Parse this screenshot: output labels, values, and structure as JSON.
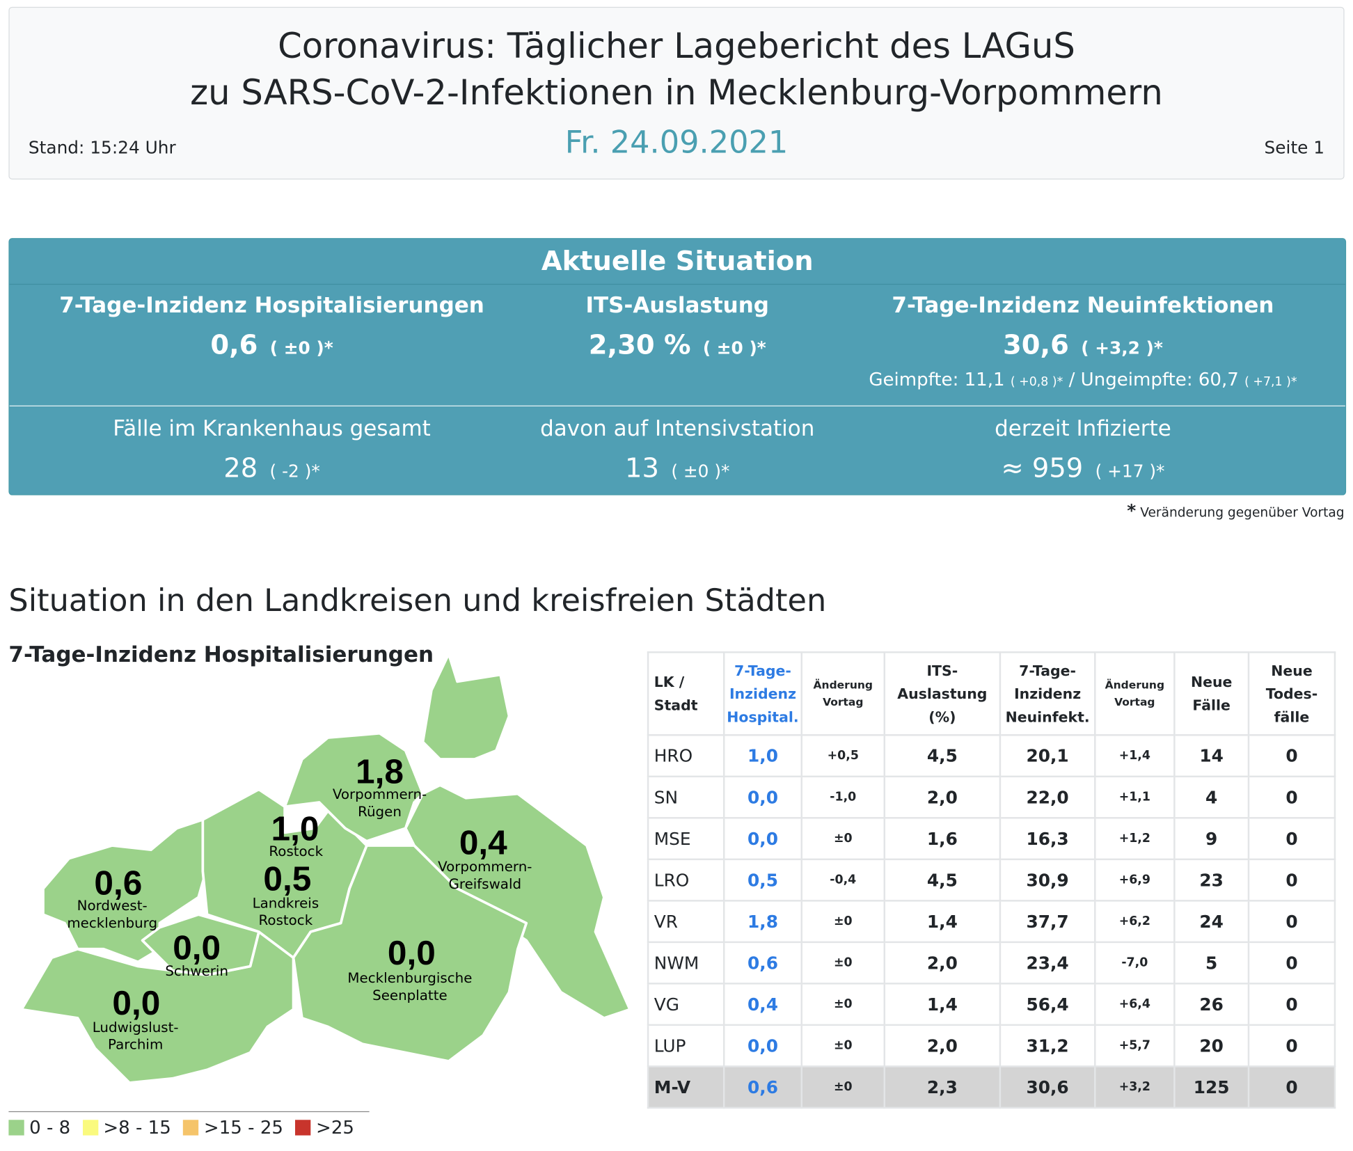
{
  "header": {
    "title_line1": "Coronavirus: Täglicher Lagebericht des LAGuS",
    "title_line2": "zu SARS-CoV-2-Infektionen in Mecklenburg-Vorpommern",
    "date": "Fr. 24.09.2021",
    "stand": "Stand: 15:24 Uhr",
    "page": "Seite 1"
  },
  "situation": {
    "title": "Aktuelle Situation",
    "hosp": {
      "label": "7-Tage-Inzidenz Hospitalisierungen",
      "value": "0,6",
      "change": "( ±0 )*"
    },
    "its": {
      "label": "ITS-Auslastung",
      "value": "2,30 %",
      "change": "( ±0 )*"
    },
    "neu": {
      "label": "7-Tage-Inzidenz Neuinfektionen",
      "value": "30,6",
      "change": "( +3,2 )*",
      "geimpfte": "Geimpfte: 11,1",
      "geimpfte_change": "( +0,8 )*",
      "sep": "/",
      "ungeimpfte": "Ungeimpfte: 60,7",
      "ungeimpfte_change": "( +7,1 )*"
    },
    "kh": {
      "label": "Fälle im Krankenhaus gesamt",
      "value": "28",
      "change": "( -2 )*"
    },
    "intensiv": {
      "label": "davon auf Intensivstation",
      "value": "13",
      "change": "( ±0 )*"
    },
    "infiziert": {
      "label": "derzeit Infizierte",
      "value": "≈ 959",
      "change": "( +17 )*"
    },
    "footnote_star": "*",
    "footnote": "Veränderung gegenüber Vortag"
  },
  "section_title": "Situation in den Landkreisen und kreisfreien Städten",
  "map": {
    "title": "7-Tage-Inzidenz Hospitalisierungen",
    "fill_color": "#9bd28a",
    "regions": [
      {
        "name1": "Vorpommern-",
        "name2": "Rügen",
        "value": "1,8"
      },
      {
        "name1": "Rostock",
        "name2": "",
        "value": "1,0"
      },
      {
        "name1": "Vorpommern-",
        "name2": "Greifswald",
        "value": "0,4"
      },
      {
        "name1": "Nordwest-",
        "name2": "mecklenburg",
        "value": "0,6"
      },
      {
        "name1": "Landkreis",
        "name2": "Rostock",
        "value": "0,5"
      },
      {
        "name1": "Schwerin",
        "name2": "",
        "value": "0,0"
      },
      {
        "name1": "Mecklenburgische",
        "name2": "Seenplatte",
        "value": "0,0"
      },
      {
        "name1": "Ludwigslust-",
        "name2": "Parchim",
        "value": "0,0"
      }
    ],
    "legend": [
      {
        "label": "0 - 8",
        "color": "#9bd28a"
      },
      {
        "label": ">8 - 15",
        "color": "#fafa7e"
      },
      {
        "label": ">15 - 25",
        "color": "#f5c46a"
      },
      {
        "label": ">25",
        "color": "#c8342c"
      }
    ]
  },
  "table": {
    "headers": [
      "LK / Stadt",
      "7-Tage-Inzidenz Hospital.",
      "Änderung Vortag",
      "ITS-Auslastung (%)",
      "7-Tage-Inzidenz Neuinfekt.",
      "Änderung Vortag",
      "Neue Fälle",
      "Neue Todes-fälle"
    ],
    "rows": [
      [
        "HRO",
        "1,0",
        "+0,5",
        "4,5",
        "20,1",
        "+1,4",
        "14",
        "0"
      ],
      [
        "SN",
        "0,0",
        "-1,0",
        "2,0",
        "22,0",
        "+1,1",
        "4",
        "0"
      ],
      [
        "MSE",
        "0,0",
        "±0",
        "1,6",
        "16,3",
        "+1,2",
        "9",
        "0"
      ],
      [
        "LRO",
        "0,5",
        "-0,4",
        "4,5",
        "30,9",
        "+6,9",
        "23",
        "0"
      ],
      [
        "VR",
        "1,8",
        "±0",
        "1,4",
        "37,7",
        "+6,2",
        "24",
        "0"
      ],
      [
        "NWM",
        "0,6",
        "±0",
        "2,0",
        "23,4",
        "-7,0",
        "5",
        "0"
      ],
      [
        "VG",
        "0,4",
        "±0",
        "1,4",
        "56,4",
        "+6,4",
        "26",
        "0"
      ],
      [
        "LUP",
        "0,0",
        "±0",
        "2,0",
        "31,2",
        "+5,7",
        "20",
        "0"
      ]
    ],
    "total": [
      "M-V",
      "0,6",
      "±0",
      "2,3",
      "30,6",
      "+3,2",
      "125",
      "0"
    ]
  }
}
